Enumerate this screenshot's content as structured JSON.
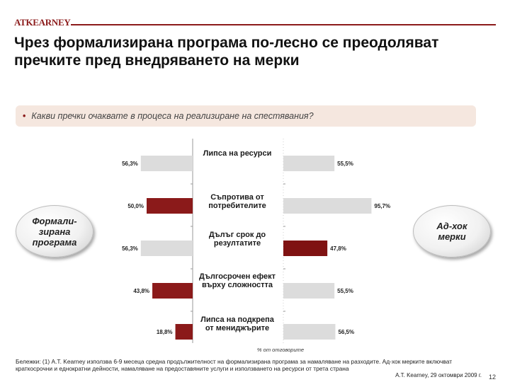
{
  "header": {
    "logo": "ATKEARNEY",
    "title": "Чрез формализирана програма по-лесно се преодоляват пречките пред внедряването на мерки"
  },
  "question": "Какви пречки очаквате в процеса на реализиране на спестявания?",
  "ovals": {
    "left": "Формали-зирана програма",
    "right": "Ад-хок мерки"
  },
  "colors": {
    "formal": "#8b1a1a",
    "adhoc": "#7f1212",
    "grey_bar": "#dcdcdc",
    "brand": "#8b1a1a"
  },
  "chart_data": {
    "type": "bar",
    "categories": [
      "Липса на ресурси",
      "Съпротива от потребителите",
      "Дълъг срок до резултатите",
      "Дългосрочен ефект върху сложността",
      "Липса на подкрепа от мениджърите"
    ],
    "series": [
      {
        "name": "Формали-зирана програма",
        "values": [
          56.3,
          50.0,
          56.3,
          43.8,
          18.8
        ],
        "labels": [
          "56,3%",
          "50,0%",
          "56,3%",
          "43,8%",
          "18,8%"
        ],
        "highlight": [
          false,
          true,
          false,
          true,
          true
        ]
      },
      {
        "name": "Ад-хок мерки",
        "values": [
          55.5,
          95.7,
          47.8,
          55.5,
          56.5
        ],
        "labels": [
          "55,5%",
          "95,7%",
          "47,8%",
          "55,5%",
          "56,5%"
        ],
        "highlight": [
          false,
          false,
          true,
          false,
          false
        ]
      }
    ],
    "xlabel": "% от отговорите",
    "xlim": [
      0,
      100
    ]
  },
  "footnote": "Бележки: (1) A.T. Kearney използва 6-9 месеца средна продължителност на формализирана програма за намаляване на разходите.  Ад-хок мерките включват краткосрочни и еднократни дейности, намаляване на предоставяните услуги и използването на ресурси от трета страна",
  "source": "A.T. Kearney, 29 октомври 2009 г.",
  "page_number": "12"
}
